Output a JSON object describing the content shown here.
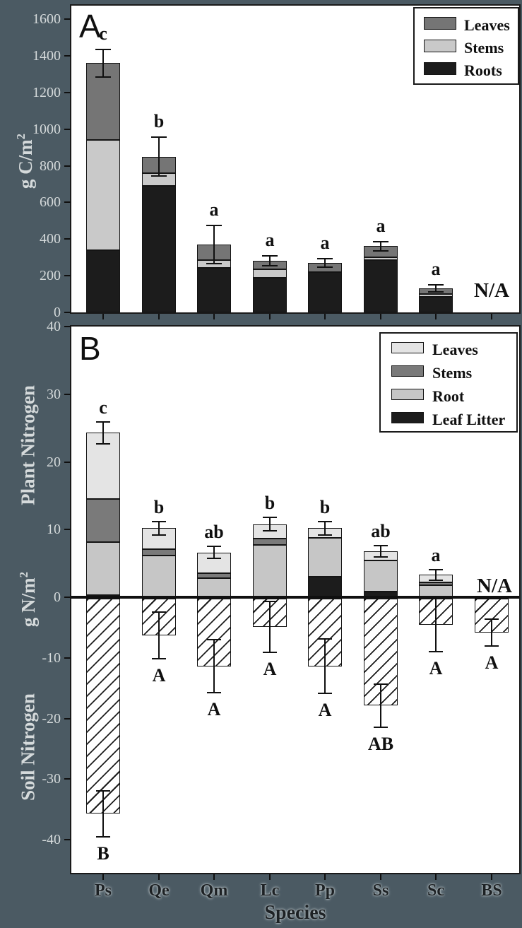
{
  "ui": {
    "panel_a_label": "A",
    "panel_b_label": "B",
    "x_axis_title": "Species",
    "species": [
      "Ps",
      "Qe",
      "Qm",
      "Lc",
      "Pp",
      "Ss",
      "Sc",
      "BS"
    ],
    "na_label": "N/A",
    "colors": {
      "background": "#4b5a63",
      "plot_bg": "#ffffff",
      "axis": "#101010",
      "margin_text": "#d5dadb",
      "bottom_text": "#1d2124"
    }
  },
  "chart_data": [
    {
      "type": "bar",
      "panel": "A",
      "stacked": true,
      "ylabel": {
        "main": "g C/m",
        "sup": "2"
      },
      "ylim": [
        0,
        1600
      ],
      "yticks": [
        0,
        200,
        400,
        600,
        800,
        1000,
        1200,
        1400,
        1600
      ],
      "grid": false,
      "legend_position": "top-right",
      "categories": [
        "Ps",
        "Qe",
        "Qm",
        "Lc",
        "Pp",
        "Ss",
        "Sc",
        "BS"
      ],
      "series": [
        {
          "name": "Roots",
          "color": "#1c1c1c",
          "dotted": false,
          "values": [
            340,
            690,
            243,
            190,
            220,
            285,
            85,
            null
          ]
        },
        {
          "name": "Stems",
          "color": "#c9c9c9",
          "dotted": false,
          "values": [
            600,
            70,
            42,
            45,
            0,
            15,
            15,
            null
          ]
        },
        {
          "name": "Leaves",
          "color": "#757575",
          "dotted": true,
          "values": [
            420,
            90,
            85,
            45,
            50,
            62,
            31,
            null
          ]
        }
      ],
      "totals": [
        1360,
        850,
        370,
        280,
        270,
        362,
        131,
        null
      ],
      "errors": [
        75,
        105,
        105,
        27,
        23,
        25,
        21,
        null
      ],
      "sig_letters": [
        "c",
        "b",
        "a",
        "a",
        "a",
        "a",
        "a",
        "N/A"
      ],
      "legend": [
        {
          "label": "Leaves",
          "color": "#757575",
          "dotted": true
        },
        {
          "label": "Stems",
          "color": "#c9c9c9",
          "dotted": false
        },
        {
          "label": "Roots",
          "color": "#1c1c1c",
          "dotted": false
        }
      ]
    },
    {
      "type": "bar",
      "panel": "B",
      "stacked": true,
      "ylabels": [
        {
          "main": "Plant Nitrogen",
          "sup": ""
        },
        {
          "main": "g N/m",
          "sup": "2"
        },
        {
          "main": "Soil Nitrogen",
          "sup": ""
        }
      ],
      "ylim": [
        -45,
        40
      ],
      "yticks": [
        40,
        30,
        20,
        10,
        0,
        -10,
        -20,
        -30,
        -40
      ],
      "grid": false,
      "legend_position": "top-right",
      "categories": [
        "Ps",
        "Qe",
        "Qm",
        "Lc",
        "Pp",
        "Ss",
        "Sc",
        "BS"
      ],
      "plant_series": [
        {
          "name": "Leaf Litter",
          "color": "#1c1c1c",
          "dotted": false,
          "values": [
            0.3,
            0,
            0,
            0,
            3.0,
            0.8,
            0,
            null
          ]
        },
        {
          "name": "Root",
          "color": "#c6c6c6",
          "dotted": false,
          "values": [
            7.8,
            6.2,
            2.8,
            7.7,
            5.8,
            4.6,
            1.8,
            null
          ]
        },
        {
          "name": "Stems",
          "color": "#7a7a7a",
          "dotted": true,
          "values": [
            6.4,
            0.9,
            0.7,
            1.0,
            0,
            0,
            0.4,
            null
          ]
        },
        {
          "name": "Leaves",
          "color": "#e4e4e4",
          "dotted": false,
          "values": [
            9.8,
            3.1,
            3.1,
            2.1,
            1.4,
            1.4,
            1.1,
            null
          ]
        }
      ],
      "plant_totals": [
        24.3,
        10.2,
        6.6,
        10.8,
        10.2,
        6.8,
        3.3,
        null
      ],
      "plant_errors": [
        1.6,
        1.0,
        0.9,
        1.0,
        1.0,
        0.8,
        0.8,
        null
      ],
      "plant_letters": [
        "c",
        "b",
        "ab",
        "b",
        "b",
        "ab",
        "a",
        "N/A"
      ],
      "soil_series_name": "Soil Nitrogen",
      "soil_values": [
        -35.7,
        -6.3,
        -11.4,
        -4.9,
        -11.4,
        -17.9,
        -4.5,
        -5.8
      ],
      "soil_errors": [
        3.8,
        3.9,
        4.4,
        4.2,
        4.5,
        3.6,
        4.5,
        2.2
      ],
      "soil_letters": [
        "B",
        "A",
        "A",
        "A",
        "A",
        "AB",
        "A",
        "A"
      ],
      "legend": [
        {
          "label": "Leaves",
          "color": "#e4e4e4",
          "dotted": false
        },
        {
          "label": "Stems",
          "color": "#7a7a7a",
          "dotted": true
        },
        {
          "label": "Root",
          "color": "#c6c6c6",
          "dotted": false
        },
        {
          "label": "Leaf Litter",
          "color": "#1c1c1c",
          "dotted": false
        }
      ]
    }
  ]
}
